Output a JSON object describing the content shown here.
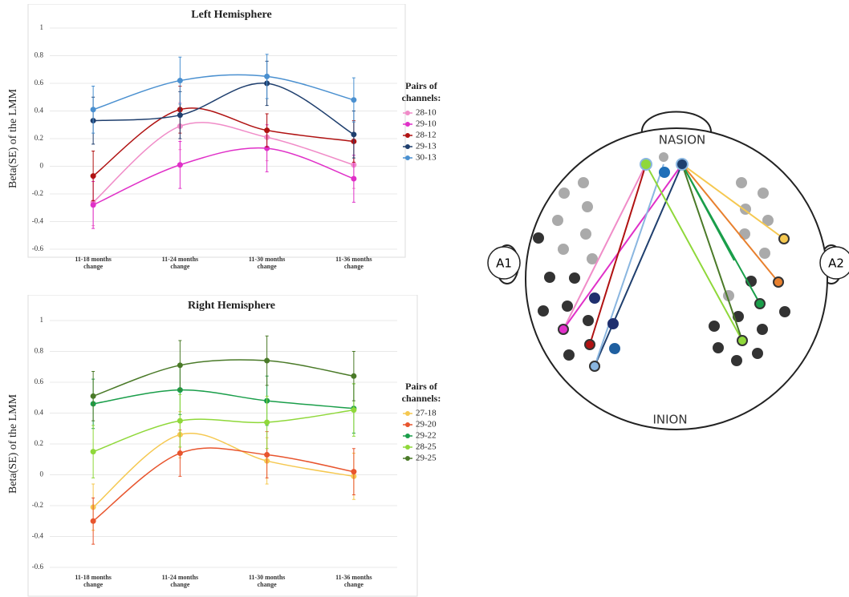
{
  "chart_data": [
    {
      "type": "line",
      "title": "Left Hemisphere",
      "y_label": "Beta(SE) of the LMM",
      "legend_title": "Pairs of channels:",
      "categories": [
        "11-18 months change",
        "11-24 months change",
        "11-30 months change",
        "11-36 months change"
      ],
      "ylim": [
        -0.6,
        1
      ],
      "yticks": [
        -0.6,
        -0.4,
        -0.2,
        0,
        0.2,
        0.4,
        0.6,
        0.8,
        1
      ],
      "grid": true,
      "series": [
        {
          "name": "28-10",
          "color": "#f08cc8",
          "values": [
            -0.26,
            0.29,
            0.21,
            0.01
          ],
          "errors": [
            0.17,
            0.17,
            0.17,
            0.17
          ]
        },
        {
          "name": "29-10",
          "color": "#e030c8",
          "values": [
            -0.28,
            0.01,
            0.13,
            -0.09
          ],
          "errors": [
            0.17,
            0.17,
            0.17,
            0.17
          ]
        },
        {
          "name": "28-12",
          "color": "#b01212",
          "values": [
            -0.07,
            0.41,
            0.26,
            0.18
          ],
          "errors": [
            0.18,
            0.17,
            0.12,
            0.15
          ]
        },
        {
          "name": "29-13",
          "color": "#1f3f6e",
          "values": [
            0.33,
            0.37,
            0.6,
            0.23
          ],
          "errors": [
            0.17,
            0.17,
            0.16,
            0.17
          ]
        },
        {
          "name": "30-13",
          "color": "#4a90d0",
          "values": [
            0.41,
            0.62,
            0.65,
            0.48
          ],
          "errors": [
            0.17,
            0.17,
            0.16,
            0.16
          ]
        }
      ]
    },
    {
      "type": "line",
      "title": "Right Hemisphere",
      "y_label": "Beta(SE) of the LMM",
      "legend_title": "Pairs of channels:",
      "categories": [
        "11-18 months change",
        "11-24 months change",
        "11-30 months change",
        "11-36 months change"
      ],
      "ylim": [
        -0.6,
        1
      ],
      "yticks": [
        -0.6,
        -0.4,
        -0.2,
        0,
        0.2,
        0.4,
        0.6,
        0.8,
        1
      ],
      "grid": true,
      "series": [
        {
          "name": "27-18",
          "color": "#f5c850",
          "values": [
            -0.21,
            0.26,
            0.09,
            -0.01
          ],
          "errors": [
            0.15,
            0.15,
            0.15,
            0.15
          ]
        },
        {
          "name": "29-20",
          "color": "#e8552e",
          "values": [
            -0.3,
            0.14,
            0.13,
            0.02
          ],
          "errors": [
            0.15,
            0.15,
            0.15,
            0.15
          ]
        },
        {
          "name": "29-22",
          "color": "#1a9e4a",
          "values": [
            0.46,
            0.55,
            0.48,
            0.43
          ],
          "errors": [
            0.16,
            0.16,
            0.16,
            0.16
          ]
        },
        {
          "name": "28-25",
          "color": "#8fd83a",
          "values": [
            0.15,
            0.35,
            0.34,
            0.42
          ],
          "errors": [
            0.17,
            0.17,
            0.17,
            0.17
          ]
        },
        {
          "name": "29-25",
          "color": "#4a7a28",
          "values": [
            0.51,
            0.71,
            0.74,
            0.64
          ],
          "errors": [
            0.16,
            0.16,
            0.16,
            0.16
          ]
        }
      ]
    }
  ],
  "diagram": {
    "top": "NASION",
    "bottom": "INION",
    "left_ear": "A1",
    "right_ear": "A2"
  }
}
